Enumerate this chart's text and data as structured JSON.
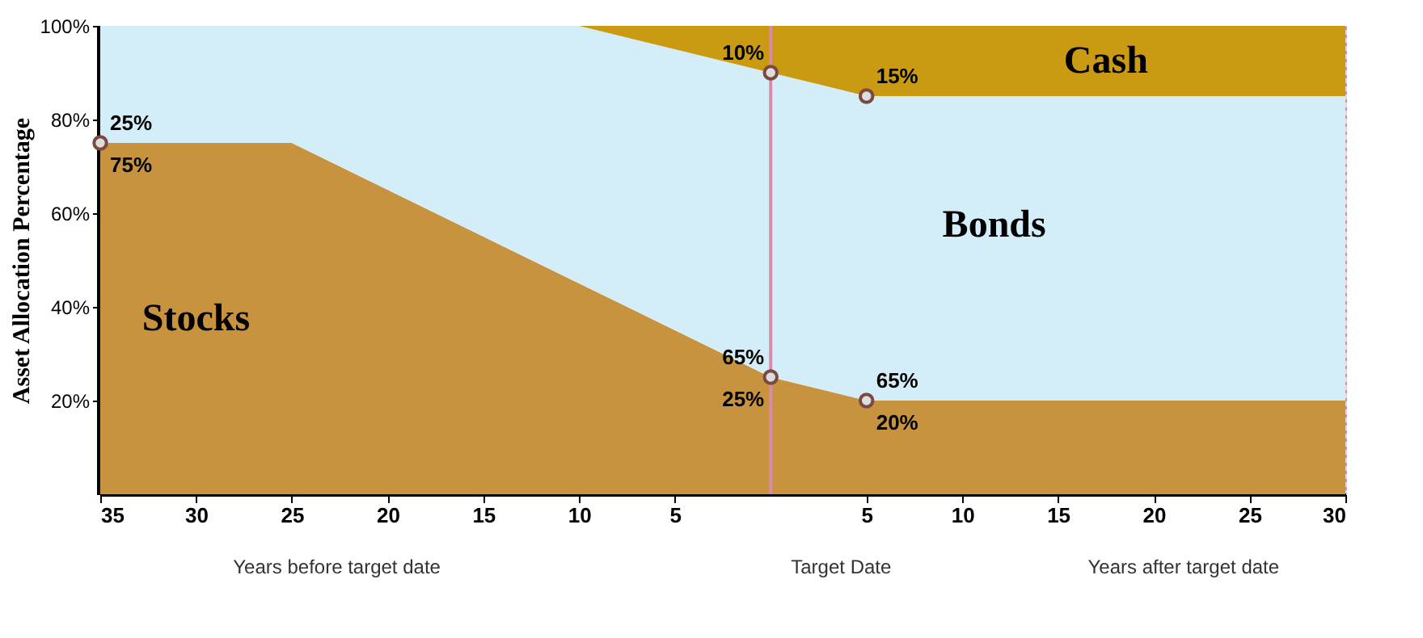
{
  "chart_data": {
    "type": "area",
    "stacked": true,
    "ylabel": "Asset Allocation Percentage",
    "x": [
      -35,
      -25,
      -10,
      0,
      5,
      30
    ],
    "series": [
      {
        "name": "Stocks",
        "color": "#c8933e",
        "values": [
          75,
          75,
          45,
          25,
          20,
          20
        ]
      },
      {
        "name": "Bonds",
        "color": "#d4eef9",
        "values": [
          25,
          25,
          55,
          65,
          65,
          65
        ]
      },
      {
        "name": "Cash",
        "color": "#c99a12",
        "values": [
          0,
          0,
          0,
          10,
          15,
          15
        ]
      }
    ],
    "xlim": [
      -35,
      30
    ],
    "ylim": [
      0,
      100
    ],
    "xticks": [
      {
        "value": -35,
        "label": "35"
      },
      {
        "value": -30,
        "label": "30"
      },
      {
        "value": -25,
        "label": "25"
      },
      {
        "value": -20,
        "label": "20"
      },
      {
        "value": -15,
        "label": "15"
      },
      {
        "value": -10,
        "label": "10"
      },
      {
        "value": -5,
        "label": "5"
      },
      5,
      10,
      15,
      20,
      25,
      30
    ],
    "yticks": [
      {
        "value": 20,
        "label": "20%"
      },
      {
        "value": 40,
        "label": "40%"
      },
      {
        "value": 60,
        "label": "60%"
      },
      {
        "value": 80,
        "label": "80%"
      },
      {
        "value": 100,
        "label": "100%"
      }
    ],
    "grid": "x",
    "legend": false,
    "ref_lines": [
      {
        "axis": "x",
        "value": 0,
        "color": "#d88aa6"
      }
    ],
    "annotations": [
      {
        "text": "25%",
        "x": -35,
        "y": 75
      },
      {
        "text": "75%",
        "x": -35,
        "y": 75
      },
      {
        "text": "10%",
        "x": 0,
        "y": 90
      },
      {
        "text": "15%",
        "x": 5,
        "y": 85
      },
      {
        "text": "65%",
        "x": 0,
        "y": 25
      },
      {
        "text": "25%",
        "x": 0,
        "y": 25
      },
      {
        "text": "65%",
        "x": 5,
        "y": 20
      },
      {
        "text": "20%",
        "x": 5,
        "y": 20
      },
      "Years before target date",
      "Target Date",
      "Years after target date"
    ]
  }
}
